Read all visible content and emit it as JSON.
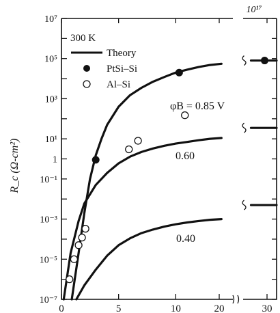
{
  "chart_data": {
    "type": "scatter",
    "title": "",
    "corner_label": "10¹⁷",
    "ylabel": "R_c (Ω-cm²)",
    "xlabel": "",
    "y_scale": "log",
    "ylim": [
      1e-07,
      10000000.0
    ],
    "xlim_main": [
      0,
      15
    ],
    "xlim_break": [
      25,
      32
    ],
    "x_ticks": [
      {
        "value": 0,
        "label": "0"
      },
      {
        "value": 5,
        "label": "5"
      },
      {
        "value": 10,
        "label": "10"
      },
      {
        "value": 20,
        "label": "20"
      },
      {
        "value": 30,
        "label": "30"
      }
    ],
    "y_ticks": [
      {
        "value": 1e-07,
        "label": "10⁻⁷"
      },
      {
        "value": 1e-05,
        "label": "10⁻⁵"
      },
      {
        "value": 0.001,
        "label": "10⁻³"
      },
      {
        "value": 0.1,
        "label": "10⁻¹"
      },
      {
        "value": 1,
        "label": "1"
      },
      {
        "value": 10,
        "label": "10¹"
      },
      {
        "value": 1000,
        "label": "10³"
      },
      {
        "value": 100000,
        "label": "10⁵"
      },
      {
        "value": 10000000,
        "label": "10⁷"
      }
    ],
    "legend": {
      "placement": "top-left",
      "header": "300 K",
      "entries": [
        {
          "label": "Theory",
          "marker": "line"
        },
        {
          "label": "PtSi–Si",
          "marker": "filled-circle"
        },
        {
          "label": "Al–Si",
          "marker": "open-circle"
        }
      ]
    },
    "series": [
      {
        "name": "Theory",
        "curve_label": "φB = 0.85 V",
        "kind": "line",
        "points": [
          [
            0.9,
            1e-07
          ],
          [
            1.5,
            2e-05
          ],
          [
            2.0,
            0.002
          ],
          [
            2.5,
            0.1
          ],
          [
            3.0,
            1.5
          ],
          [
            3.5,
            10
          ],
          [
            4.0,
            50
          ],
          [
            5.0,
            400
          ],
          [
            6.0,
            1500
          ],
          [
            7.0,
            3500
          ],
          [
            8.0,
            7000
          ],
          [
            9.0,
            12000
          ],
          [
            10.0,
            20000
          ],
          [
            11.0,
            28000
          ],
          [
            12.0,
            38000
          ],
          [
            13.0,
            48000
          ],
          [
            14.0,
            55000
          ]
        ],
        "plateau": {
          "x": [
            25.5,
            32
          ],
          "y": 80000
        }
      },
      {
        "name": "Theory",
        "curve_label": "0.60",
        "kind": "line",
        "points": [
          [
            0.2,
            1e-07
          ],
          [
            0.8,
            2e-05
          ],
          [
            1.5,
            0.0008
          ],
          [
            2.0,
            0.006
          ],
          [
            3.0,
            0.05
          ],
          [
            4.0,
            0.2
          ],
          [
            5.0,
            0.6
          ],
          [
            6.0,
            1.3
          ],
          [
            7.0,
            2.2
          ],
          [
            8.0,
            3.3
          ],
          [
            9.0,
            4.5
          ],
          [
            10.0,
            5.8
          ],
          [
            11.0,
            7
          ],
          [
            12.0,
            8.5
          ],
          [
            13.0,
            10
          ],
          [
            14.0,
            11
          ]
        ],
        "plateau": {
          "x": [
            25.5,
            32
          ],
          "y": 35
        }
      },
      {
        "name": "Theory",
        "curve_label": "0.40",
        "kind": "line",
        "points": [
          [
            1.3,
            1e-07
          ],
          [
            2.0,
            5e-07
          ],
          [
            3.0,
            3e-06
          ],
          [
            4.0,
            1.5e-05
          ],
          [
            5.0,
            5e-05
          ],
          [
            6.0,
            0.00011
          ],
          [
            7.0,
            0.0002
          ],
          [
            8.0,
            0.0003
          ],
          [
            9.0,
            0.00042
          ],
          [
            10.0,
            0.00055
          ],
          [
            11.0,
            0.00068
          ],
          [
            12.0,
            0.0008
          ],
          [
            13.0,
            0.00092
          ],
          [
            14.0,
            0.001
          ]
        ],
        "plateau": {
          "x": [
            25.5,
            32
          ],
          "y": 0.005
        }
      },
      {
        "name": "PtSi–Si",
        "kind": "filled-circle",
        "points": [
          [
            3.0,
            0.9
          ],
          [
            10.3,
            20000
          ],
          [
            29.5,
            80000
          ]
        ]
      },
      {
        "name": "Al–Si",
        "kind": "open-circle",
        "points": [
          [
            0.7,
            1e-06
          ],
          [
            1.1,
            1e-05
          ],
          [
            1.5,
            5e-05
          ],
          [
            1.8,
            0.00012
          ],
          [
            2.1,
            0.00033
          ],
          [
            5.9,
            3
          ],
          [
            6.7,
            8
          ],
          [
            10.8,
            150
          ]
        ]
      }
    ]
  }
}
